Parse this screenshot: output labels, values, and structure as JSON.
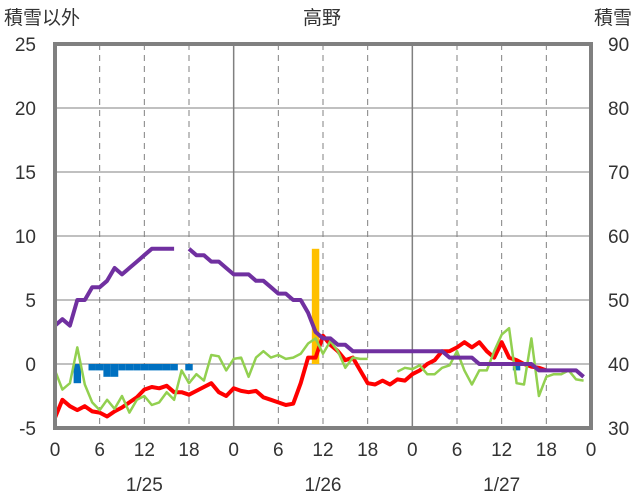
{
  "chart_data": {
    "type": "line",
    "title": "高野",
    "ylabel_left": "積雪以外",
    "ylabel_right": "積雪",
    "ylim_left": [
      -5,
      25
    ],
    "ylim_right": [
      30,
      90
    ],
    "yticks_left": [
      "25",
      "20",
      "15",
      "10",
      "5",
      "0",
      "-5"
    ],
    "yticks_right": [
      "90",
      "80",
      "70",
      "60",
      "50",
      "40",
      "30"
    ],
    "xticks": [
      "0",
      "6",
      "12",
      "18",
      "0",
      "6",
      "12",
      "18",
      "0",
      "6",
      "12",
      "18",
      "0"
    ],
    "date_labels": [
      "1/25",
      "1/26",
      "1/27"
    ],
    "x_range_hours": [
      0,
      72
    ],
    "grid": true,
    "colors": {
      "red": "#ff0000",
      "green": "#92d050",
      "purple": "#7030a0",
      "blue": "#0070c0",
      "orange": "#ffc000",
      "frame": "#808080",
      "grid": "#808080"
    },
    "series": [
      {
        "color_key": "red",
        "axis": "left",
        "points": [
          [
            0,
            -4.2
          ],
          [
            1,
            -2.8
          ],
          [
            2,
            -3.3
          ],
          [
            3,
            -3.6
          ],
          [
            4,
            -3.3
          ],
          [
            5,
            -3.7
          ],
          [
            6,
            -3.8
          ],
          [
            7,
            -4.1
          ],
          [
            8,
            -3.7
          ],
          [
            9,
            -3.4
          ],
          [
            10,
            -3.0
          ],
          [
            11,
            -2.6
          ],
          [
            12,
            -2.0
          ],
          [
            13,
            -1.8
          ],
          [
            14,
            -1.9
          ],
          [
            15,
            -1.7
          ],
          [
            16,
            -2.2
          ],
          [
            17,
            -2.2
          ],
          [
            18,
            -2.4
          ],
          [
            19,
            -2.1
          ],
          [
            20,
            -1.8
          ],
          [
            21,
            -1.5
          ],
          [
            22,
            -2.2
          ],
          [
            23,
            -2.5
          ],
          [
            24,
            -1.9
          ],
          [
            25,
            -2.1
          ],
          [
            26,
            -2.2
          ],
          [
            27,
            -2.1
          ],
          [
            28,
            -2.6
          ],
          [
            29,
            -2.8
          ],
          [
            30,
            -3.0
          ],
          [
            31,
            -3.2
          ],
          [
            32,
            -3.1
          ],
          [
            33,
            -1.5
          ],
          [
            34,
            0.5
          ],
          [
            35,
            0.5
          ],
          [
            36,
            2.2
          ],
          [
            37,
            1.5
          ],
          [
            38,
            1.0
          ],
          [
            39,
            0.3
          ],
          [
            40,
            0.5
          ],
          [
            41,
            -0.5
          ],
          [
            42,
            -1.5
          ],
          [
            43,
            -1.6
          ],
          [
            44,
            -1.3
          ],
          [
            45,
            -1.6
          ],
          [
            46,
            -1.2
          ],
          [
            47,
            -1.3
          ],
          [
            48,
            -0.8
          ],
          [
            49,
            -0.5
          ],
          [
            50,
            0.0
          ],
          [
            51,
            0.3
          ],
          [
            52,
            1.0
          ],
          [
            53,
            1.0
          ],
          [
            54,
            1.3
          ],
          [
            55,
            1.7
          ],
          [
            56,
            1.3
          ],
          [
            57,
            1.7
          ],
          [
            58,
            1.0
          ],
          [
            59,
            0.5
          ],
          [
            60,
            1.7
          ],
          [
            61,
            0.5
          ],
          [
            62,
            0.3
          ],
          [
            63,
            0.0
          ],
          [
            64,
            -0.2
          ],
          [
            65,
            -0.3
          ],
          [
            66,
            -0.5
          ]
        ]
      },
      {
        "color_key": "green",
        "axis": "left",
        "points": [
          [
            0,
            -0.5
          ],
          [
            1,
            -2.0
          ],
          [
            2,
            -1.5
          ],
          [
            3,
            1.3
          ],
          [
            4,
            -1.6
          ],
          [
            5,
            -3.0
          ],
          [
            6,
            -3.6
          ],
          [
            7,
            -2.8
          ],
          [
            8,
            -3.5
          ],
          [
            9,
            -2.5
          ],
          [
            10,
            -3.8
          ],
          [
            11,
            -2.8
          ],
          [
            12,
            -2.5
          ],
          [
            13,
            -3.2
          ],
          [
            14,
            -3.0
          ],
          [
            15,
            -2.2
          ],
          [
            16,
            -2.8
          ],
          [
            17,
            -0.5
          ],
          [
            18,
            -1.5
          ],
          [
            19,
            -0.8
          ],
          [
            20,
            -1.3
          ],
          [
            21,
            0.7
          ],
          [
            22,
            0.6
          ],
          [
            23,
            -0.5
          ],
          [
            24,
            0.4
          ],
          [
            25,
            0.5
          ],
          [
            26,
            -1.0
          ],
          [
            27,
            0.5
          ],
          [
            28,
            1.0
          ],
          [
            29,
            0.5
          ],
          [
            30,
            0.7
          ],
          [
            31,
            0.4
          ],
          [
            32,
            0.5
          ],
          [
            33,
            0.8
          ],
          [
            34,
            1.6
          ],
          [
            35,
            2.0
          ],
          [
            36,
            0.8
          ],
          [
            37,
            1.8
          ],
          [
            38,
            1.0
          ],
          [
            39,
            -0.3
          ],
          [
            40,
            0.5
          ],
          [
            41,
            0.4
          ],
          [
            42,
            0.4
          ]
        ]
      },
      {
        "color_key": "green",
        "axis": "left",
        "points": [
          [
            46,
            -0.6
          ],
          [
            47,
            -0.3
          ],
          [
            48,
            -0.4
          ],
          [
            49,
            -0.1
          ],
          [
            50,
            -0.8
          ],
          [
            51,
            -0.8
          ],
          [
            52,
            -0.3
          ],
          [
            53,
            -0.1
          ],
          [
            54,
            1.0
          ],
          [
            55,
            -0.5
          ],
          [
            56,
            -1.6
          ],
          [
            57,
            -0.5
          ],
          [
            58,
            -0.5
          ],
          [
            59,
            1.0
          ],
          [
            60,
            2.3
          ],
          [
            61,
            2.8
          ],
          [
            62,
            -1.5
          ],
          [
            63,
            -1.6
          ],
          [
            64,
            2.0
          ],
          [
            65,
            -2.5
          ],
          [
            66,
            -1.0
          ],
          [
            67,
            -0.8
          ],
          [
            68,
            -0.8
          ],
          [
            69,
            -0.5
          ],
          [
            70,
            -1.2
          ],
          [
            71,
            -1.3
          ]
        ]
      },
      {
        "color_key": "purple",
        "axis": "right",
        "points": [
          [
            0,
            46.0
          ],
          [
            1,
            47.0
          ],
          [
            2,
            46.0
          ],
          [
            3,
            50.0
          ],
          [
            4,
            50.0
          ],
          [
            5,
            52.0
          ],
          [
            6,
            52.0
          ],
          [
            7,
            53.0
          ],
          [
            8,
            55.0
          ],
          [
            9,
            54.0
          ],
          [
            10,
            55.0
          ],
          [
            11,
            56.0
          ],
          [
            12,
            57.0
          ],
          [
            13,
            58.0
          ],
          [
            14,
            58.0
          ],
          [
            15,
            58.0
          ],
          [
            16,
            58.0
          ]
        ]
      },
      {
        "color_key": "purple",
        "axis": "right",
        "points": [
          [
            18,
            58.0
          ],
          [
            19,
            57.0
          ],
          [
            20,
            57.0
          ],
          [
            21,
            56.0
          ],
          [
            22,
            56.0
          ],
          [
            23,
            55.0
          ],
          [
            24,
            54.0
          ],
          [
            25,
            54.0
          ],
          [
            26,
            54.0
          ],
          [
            27,
            53.0
          ],
          [
            28,
            53.0
          ],
          [
            29,
            52.0
          ],
          [
            30,
            51.0
          ],
          [
            31,
            51.0
          ],
          [
            32,
            50.0
          ],
          [
            33,
            50.0
          ],
          [
            34,
            48.0
          ],
          [
            35,
            45.0
          ],
          [
            36,
            44.0
          ],
          [
            37,
            44.0
          ],
          [
            38,
            43.0
          ],
          [
            39,
            43.0
          ],
          [
            40,
            42.0
          ],
          [
            41,
            42.0
          ],
          [
            42,
            42.0
          ],
          [
            43,
            42.0
          ],
          [
            44,
            42.0
          ],
          [
            45,
            42.0
          ],
          [
            46,
            42.0
          ],
          [
            47,
            42.0
          ],
          [
            48,
            42.0
          ],
          [
            49,
            42.0
          ],
          [
            50,
            42.0
          ],
          [
            51,
            42.0
          ],
          [
            52,
            42.0
          ],
          [
            53,
            41.0
          ],
          [
            54,
            41.0
          ],
          [
            55,
            41.0
          ],
          [
            56,
            41.0
          ],
          [
            57,
            40.0
          ],
          [
            58,
            40.0
          ],
          [
            59,
            40.0
          ],
          [
            60,
            40.0
          ],
          [
            61,
            40.0
          ],
          [
            62,
            40.0
          ],
          [
            63,
            40.0
          ],
          [
            64,
            40.0
          ],
          [
            65,
            39.0
          ],
          [
            66,
            39.0
          ],
          [
            67,
            39.0
          ],
          [
            68,
            39.0
          ],
          [
            69,
            39.0
          ],
          [
            70,
            39.0
          ],
          [
            71,
            38.0
          ]
        ]
      }
    ],
    "bars": [
      {
        "color_key": "blue",
        "x": 3,
        "y0": 0,
        "y1": -1.5
      },
      {
        "color_key": "blue",
        "x": 5,
        "y0": 0,
        "y1": -0.5
      },
      {
        "color_key": "blue",
        "x": 6,
        "y0": 0,
        "y1": -0.5
      },
      {
        "color_key": "blue",
        "x": 7,
        "y0": 0,
        "y1": -1.0
      },
      {
        "color_key": "blue",
        "x": 8,
        "y0": 0,
        "y1": -1.0
      },
      {
        "color_key": "blue",
        "x": 9,
        "y0": 0,
        "y1": -0.5
      },
      {
        "color_key": "blue",
        "x": 10,
        "y0": 0,
        "y1": -0.5
      },
      {
        "color_key": "blue",
        "x": 11,
        "y0": 0,
        "y1": -0.5
      },
      {
        "color_key": "blue",
        "x": 12,
        "y0": 0,
        "y1": -0.5
      },
      {
        "color_key": "blue",
        "x": 13,
        "y0": 0,
        "y1": -0.5
      },
      {
        "color_key": "blue",
        "x": 14,
        "y0": 0,
        "y1": -0.5
      },
      {
        "color_key": "blue",
        "x": 15,
        "y0": 0,
        "y1": -0.5
      },
      {
        "color_key": "blue",
        "x": 16,
        "y0": 0,
        "y1": -0.5
      },
      {
        "color_key": "blue",
        "x": 18,
        "y0": 0,
        "y1": -0.5
      },
      {
        "color_key": "orange",
        "x": 35,
        "y0": 0,
        "y1": 9.0
      },
      {
        "color_key": "blue",
        "x": 62,
        "y0": 0,
        "y1": -0.5
      }
    ]
  }
}
